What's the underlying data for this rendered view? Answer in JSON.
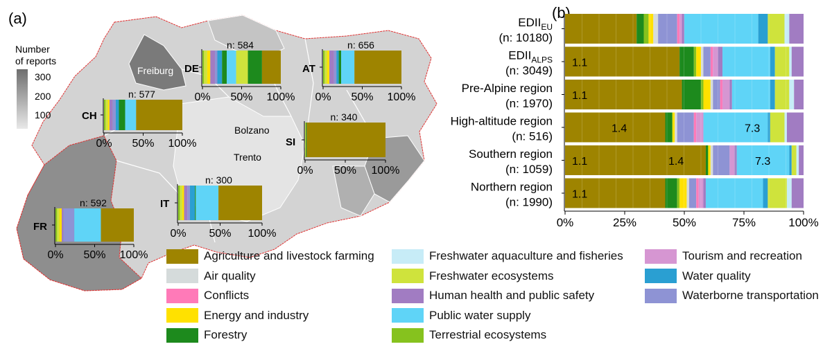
{
  "categories": [
    {
      "name": "Agriculture and livestock farming",
      "color": "#9e8400"
    },
    {
      "name": "Air quality",
      "color": "#d5dbdb"
    },
    {
      "name": "Conflicts",
      "color": "#ff7ab8"
    },
    {
      "name": "Energy and industry",
      "color": "#ffe100"
    },
    {
      "name": "Forestry",
      "color": "#1d8a1d"
    },
    {
      "name": "Freshwater aquaculture and fisheries",
      "color": "#c7ecf7"
    },
    {
      "name": "Freshwater ecosystems",
      "color": "#cfe33c"
    },
    {
      "name": "Human health and public safety",
      "color": "#a17cc2"
    },
    {
      "name": "Public water supply",
      "color": "#5fd4f7"
    },
    {
      "name": "Terrestrial ecosystems",
      "color": "#86c21e"
    },
    {
      "name": "Tourism and recreation",
      "color": "#d696d2"
    },
    {
      "name": "Water quality",
      "color": "#2a9fd2"
    },
    {
      "name": "Waterborne transportation",
      "color": "#8e93d4"
    }
  ],
  "panel_a": {
    "label": "(a)",
    "colorbar": {
      "title_line1": "Number",
      "title_line2": "of reports",
      "ticks": [
        "300",
        "200",
        "100"
      ]
    },
    "place_names": [
      "Freiburg",
      "Bolzano",
      "Trento"
    ],
    "countries": [
      {
        "code": "DE",
        "n_label": "n: 584"
      },
      {
        "code": "AT",
        "n_label": "n: 656"
      },
      {
        "code": "CH",
        "n_label": "n: 577"
      },
      {
        "code": "SI",
        "n_label": "n: 340"
      },
      {
        "code": "IT",
        "n_label": "n: 300"
      },
      {
        "code": "FR",
        "n_label": "n: 592"
      }
    ],
    "axis_ticks": [
      "0%",
      "50%",
      "100%"
    ]
  },
  "panel_b": {
    "label": "(b)",
    "x_ticks": [
      "0%",
      "25%",
      "50%",
      "75%",
      "100%"
    ],
    "rows": [
      {
        "name_main": "EDII",
        "name_sub": "EU",
        "n_label": "(n: 10180)"
      },
      {
        "name_main": "EDII",
        "name_sub": "ALPS",
        "n_label": "(n: 3049)"
      },
      {
        "name_main": "Pre-Alpine region",
        "name_sub": "",
        "n_label": "(n: 1970)"
      },
      {
        "name_main": "High-altitude region",
        "name_sub": "",
        "n_label": "(n: 516)"
      },
      {
        "name_main": "Southern region",
        "name_sub": "",
        "n_label": "(n: 1059)"
      },
      {
        "name_main": "Northern region",
        "name_sub": "",
        "n_label": "(n: 1990)"
      }
    ],
    "annotations": [
      "1.1",
      "1.1",
      "1.4",
      "7.3",
      "1.1",
      "1.4",
      "7.3",
      "1.1"
    ]
  },
  "chart_data": [
    {
      "type": "bar",
      "title": "",
      "orientation": "horizontal",
      "stacked": true,
      "xlim": [
        0,
        100
      ],
      "x_unit": "%",
      "categories": [
        "EDII_EU (n: 10180)",
        "EDII_ALPS (n: 3049)",
        "Pre-Alpine region (n: 1970)",
        "High-altitude region (n: 516)",
        "Southern region (n: 1059)",
        "Northern region (n: 1990)"
      ],
      "series": [
        {
          "name": "Agriculture and livestock farming",
          "values": [
            30,
            48,
            49,
            42,
            59,
            42
          ]
        },
        {
          "name": "Forestry",
          "values": [
            3,
            6,
            8,
            3,
            1,
            5
          ]
        },
        {
          "name": "Terrestrial ecosystems",
          "values": [
            2,
            1,
            1,
            0,
            0,
            1
          ]
        },
        {
          "name": "Energy and industry",
          "values": [
            2,
            2,
            3,
            1,
            1,
            3
          ]
        },
        {
          "name": "Air quality",
          "values": [
            2,
            1,
            1,
            1,
            1,
            1
          ]
        },
        {
          "name": "Waterborne transportation",
          "values": [
            8,
            3,
            3,
            7,
            7,
            3
          ]
        },
        {
          "name": "Conflicts",
          "values": [
            1,
            1,
            1,
            1,
            0,
            1
          ]
        },
        {
          "name": "Tourism and recreation",
          "values": [
            1,
            2,
            3,
            3,
            2,
            2
          ]
        },
        {
          "name": "Human health and public safety",
          "values": [
            1,
            2,
            1,
            0,
            1,
            1
          ]
        },
        {
          "name": "Public water supply",
          "values": [
            31,
            20,
            16,
            27,
            22,
            24
          ]
        },
        {
          "name": "Water quality",
          "values": [
            4,
            2,
            2,
            1,
            1,
            2
          ]
        },
        {
          "name": "Freshwater ecosystems",
          "values": [
            7,
            6,
            6,
            6,
            2,
            8
          ]
        },
        {
          "name": "Freshwater aquaculture and fisheries",
          "values": [
            2,
            1,
            2,
            1,
            1,
            2
          ]
        },
        {
          "name": "Human health and public safety",
          "values": [
            6,
            5,
            4,
            7,
            2,
            5
          ]
        }
      ]
    },
    {
      "type": "bar",
      "title": "",
      "orientation": "horizontal",
      "stacked": true,
      "xlim": [
        0,
        100
      ],
      "x_unit": "%",
      "categories": [
        "DE",
        "AT",
        "CH",
        "SI",
        "IT",
        "FR"
      ],
      "series": [
        {
          "name": "Terrestrial ecosystems",
          "values": [
            2,
            2,
            2,
            0,
            2,
            2
          ]
        },
        {
          "name": "Freshwater ecosystems",
          "values": [
            4,
            3,
            3,
            1,
            3,
            3
          ]
        },
        {
          "name": "Energy and industry",
          "values": [
            4,
            3,
            2,
            0,
            2,
            3
          ]
        },
        {
          "name": "Human health and public safety",
          "values": [
            6,
            6,
            4,
            0,
            4,
            2
          ]
        },
        {
          "name": "Waterborne transportation",
          "values": [
            3,
            3,
            4,
            0,
            3,
            14
          ]
        },
        {
          "name": "Water quality",
          "values": [
            6,
            3,
            4,
            0,
            6,
            0
          ]
        },
        {
          "name": "Forestry",
          "values": [
            6,
            3,
            8,
            1,
            1,
            0
          ]
        },
        {
          "name": "Public water supply",
          "values": [
            12,
            17,
            14,
            0,
            27,
            34
          ]
        },
        {
          "name": "Freshwater ecosystems",
          "values": [
            15,
            0,
            0,
            0,
            0,
            0
          ]
        },
        {
          "name": "Forestry",
          "values": [
            18,
            0,
            0,
            0,
            0,
            0
          ]
        },
        {
          "name": "Agriculture and livestock farming",
          "values": [
            24,
            60,
            59,
            98,
            52,
            42
          ]
        }
      ]
    }
  ]
}
